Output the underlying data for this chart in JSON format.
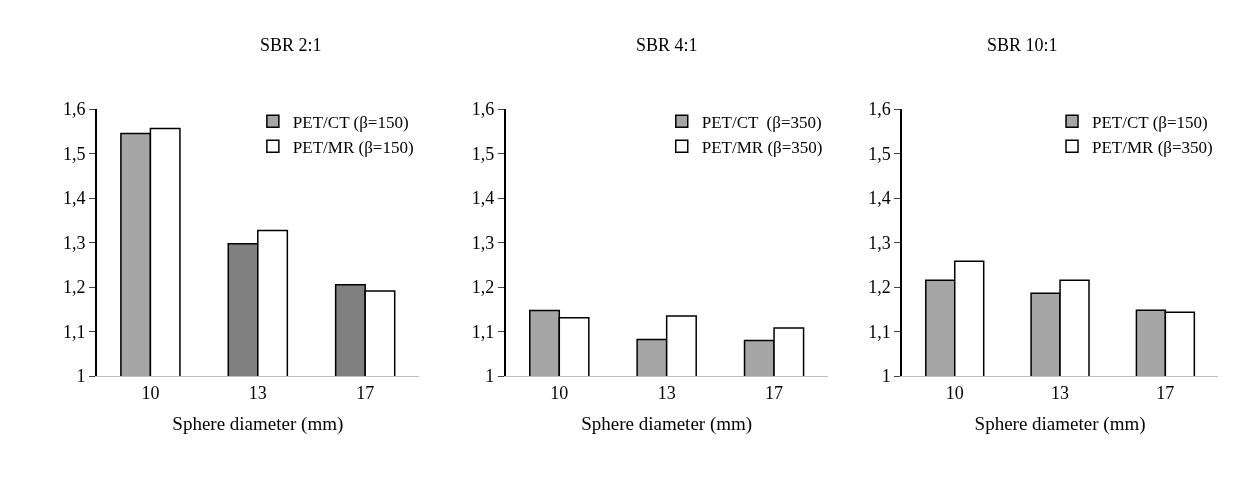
{
  "chart_data": [
    {
      "type": "bar",
      "title": "SBR 2:1",
      "xlabel": "Sphere diameter (mm)",
      "categories": [
        "10",
        "13",
        "17"
      ],
      "ylim": [
        1,
        1.6
      ],
      "yticks": [
        {
          "value": 1,
          "label": "1"
        },
        {
          "value": 1.1,
          "label": "1,1"
        },
        {
          "value": 1.2,
          "label": "1,2"
        },
        {
          "value": 1.3,
          "label": "1,3"
        },
        {
          "value": 1.4,
          "label": "1,4"
        },
        {
          "value": 1.5,
          "label": "1,5"
        },
        {
          "value": 1.6,
          "label": "1,6"
        }
      ],
      "legend": "top right",
      "series": [
        {
          "name": "PET/CT (β=150)",
          "colors": [
            "#a6a6a6",
            "#808080",
            "#808080"
          ],
          "values": [
            1.545,
            1.297,
            1.205
          ]
        },
        {
          "name": "PET/MR (β=150)",
          "color": "#ffffff",
          "values": [
            1.556,
            1.327,
            1.191
          ]
        }
      ]
    },
    {
      "type": "bar",
      "title": "SBR 4:1",
      "xlabel": "Sphere diameter (mm)",
      "categories": [
        "10",
        "13",
        "17"
      ],
      "ylim": [
        1,
        1.6
      ],
      "yticks": [
        {
          "value": 1,
          "label": "1"
        },
        {
          "value": 1.1,
          "label": "1,1"
        },
        {
          "value": 1.2,
          "label": "1,2"
        },
        {
          "value": 1.3,
          "label": "1,3"
        },
        {
          "value": 1.4,
          "label": "1,4"
        },
        {
          "value": 1.5,
          "label": "1,5"
        },
        {
          "value": 1.6,
          "label": "1,6"
        }
      ],
      "legend": "top right",
      "series": [
        {
          "name": "PET/CT  (β=350)",
          "color": "#a6a6a6",
          "values": [
            1.147,
            1.082,
            1.08
          ]
        },
        {
          "name": "PET/MR (β=350)",
          "color": "#ffffff",
          "values": [
            1.131,
            1.135,
            1.108
          ]
        }
      ]
    },
    {
      "type": "bar",
      "title": "SBR 10:1",
      "xlabel": "Sphere diameter (mm)",
      "categories": [
        "10",
        "13",
        "17"
      ],
      "ylim": [
        1,
        1.6
      ],
      "yticks": [
        {
          "value": 1,
          "label": "1"
        },
        {
          "value": 1.1,
          "label": "1,1"
        },
        {
          "value": 1.2,
          "label": "1,2"
        },
        {
          "value": 1.3,
          "label": "1,3"
        },
        {
          "value": 1.4,
          "label": "1,4"
        },
        {
          "value": 1.5,
          "label": "1,5"
        },
        {
          "value": 1.6,
          "label": "1,6"
        }
      ],
      "legend": "top right",
      "series": [
        {
          "name": "PET/CT (β=150)",
          "color": "#a6a6a6",
          "values": [
            1.215,
            1.186,
            1.148
          ]
        },
        {
          "name": "PET/MR (β=350)",
          "color": "#ffffff",
          "values": [
            1.258,
            1.215,
            1.143
          ]
        }
      ]
    }
  ]
}
